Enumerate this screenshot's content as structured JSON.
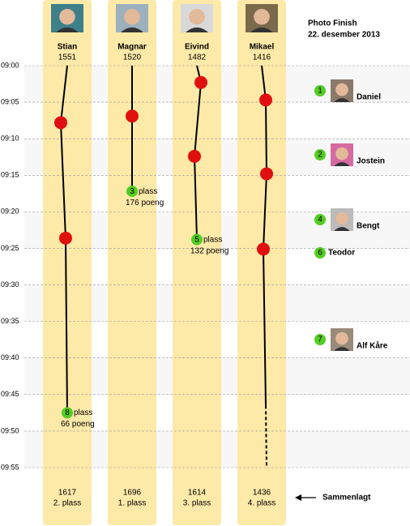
{
  "title": "Photo Finish",
  "subtitle": "22. desember 2013",
  "time_axis": {
    "range": [
      0,
      55
    ],
    "ticks": [
      {
        "value": 0,
        "label": "09:00"
      },
      {
        "value": 5,
        "label": "09:05"
      },
      {
        "value": 10,
        "label": "09:10"
      },
      {
        "value": 15,
        "label": "09:15"
      },
      {
        "value": 20,
        "label": "09:20"
      },
      {
        "value": 25,
        "label": "09:25"
      },
      {
        "value": 30,
        "label": "09:30"
      },
      {
        "value": 35,
        "label": "09:35"
      },
      {
        "value": 40,
        "label": "09:40"
      },
      {
        "value": 45,
        "label": "09:45"
      },
      {
        "value": 50,
        "label": "09:50"
      },
      {
        "value": 55,
        "label": "09:55"
      }
    ]
  },
  "players": [
    {
      "name": "Stian",
      "rating": 1551,
      "events": [
        7.8,
        23.6
      ],
      "finish": {
        "time": 47.5,
        "place": 8,
        "place_label": "plass",
        "points": "66 poeng"
      },
      "total": 1617,
      "final": "2. plass"
    },
    {
      "name": "Magnar",
      "rating": 1520,
      "events": [
        6.9
      ],
      "finish": {
        "time": 17.2,
        "place": 3,
        "place_label": "plass",
        "points": "176 poeng"
      },
      "total": 1696,
      "final": "1. plass"
    },
    {
      "name": "Eivind",
      "rating": 1482,
      "events": [
        2.3,
        12.4
      ],
      "finish": {
        "time": 23.8,
        "place": 5,
        "place_label": "plass",
        "points": "132 poeng"
      },
      "total": 1614,
      "final": "3. plass"
    },
    {
      "name": "Mikael",
      "rating": 1416,
      "events": [
        4.7,
        14.8,
        25.1
      ],
      "solid_until": 46.5,
      "total": 1436,
      "final": "4. plass"
    }
  ],
  "finishers": [
    {
      "place": 1,
      "name": "Daniel"
    },
    {
      "place": 2,
      "name": "Jostein"
    },
    {
      "place": 4,
      "name": "Bengt"
    },
    {
      "place": 6,
      "name": "Teodor"
    },
    {
      "place": 7,
      "name": "Alf Kåre"
    }
  ],
  "sum_label": "Sammenlagt"
}
